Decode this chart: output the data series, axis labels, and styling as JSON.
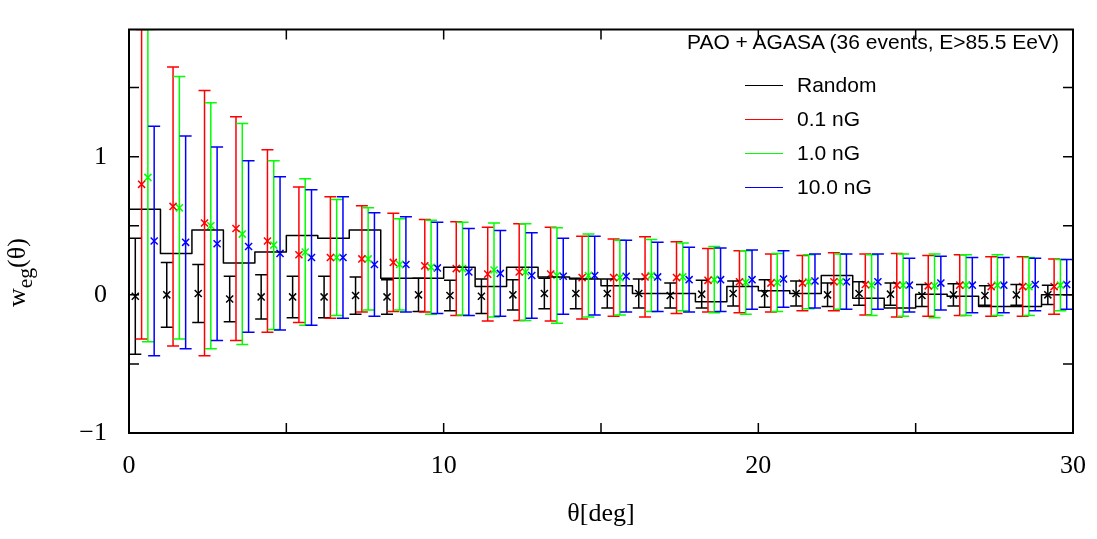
{
  "chart_data": {
    "type": "scatter",
    "legend_title": "PAO + AGASA (36 events, E>85.5 EeV)",
    "xlabel": "θ[deg]",
    "ylabel": "w$_{eg}$(θ)",
    "xlim": [
      0,
      30
    ],
    "ylim": [
      -1,
      1.92
    ],
    "xticks": [
      0,
      {
        "value": 5,
        "label": null
      },
      10,
      {
        "value": 15,
        "label": null
      },
      20,
      {
        "value": 25,
        "label": null
      },
      30
    ],
    "yticks": [
      -1,
      {
        "value": -0.5,
        "label": null
      },
      0,
      {
        "value": 0.5,
        "label": null
      },
      1,
      {
        "value": 1.5,
        "label": null
      }
    ],
    "legend": "top right",
    "marker": "cross",
    "series": [
      {
        "type": "histogram",
        "color": "#000000",
        "bins": [
          0,
          1,
          2,
          3,
          4,
          5,
          6,
          7,
          8,
          9,
          10,
          11,
          12,
          13,
          14,
          15,
          16,
          17,
          18,
          19,
          20,
          21,
          22,
          23,
          24,
          25,
          26,
          27,
          28,
          29,
          30
        ],
        "values": [
          0.62,
          0.3,
          0.47,
          0.23,
          0.31,
          0.43,
          0.41,
          0.47,
          0.12,
          0.12,
          0.2,
          0.06,
          0.2,
          0.13,
          0.115,
          0.065,
          0.01,
          0.01,
          -0.05,
          0.06,
          0.03,
          0.01,
          0.14,
          -0.025,
          -0.095,
          0.005,
          -0.01,
          -0.085,
          -0.085,
          0.0
        ]
      },
      {
        "name": "Random",
        "color": "#000000",
        "x": [
          0.2,
          1.2,
          2.2,
          3.2,
          4.2,
          5.2,
          6.2,
          7.2,
          8.2,
          9.2,
          10.2,
          11.2,
          12.2,
          13.2,
          14.2,
          15.2,
          16.2,
          17.2,
          18.2,
          19.2,
          20.2,
          21.2,
          22.2,
          23.2,
          24.2,
          25.2,
          26.2,
          27.2,
          28.2,
          29.2
        ],
        "values": [
          -0.01,
          0.0,
          0.01,
          -0.03,
          -0.015,
          -0.015,
          -0.015,
          -0.005,
          -0.015,
          0.0,
          -0.005,
          -0.01,
          0.0,
          0.01,
          0.01,
          0.01,
          0.01,
          -0.005,
          0.005,
          0.01,
          0.01,
          0.01,
          0.0,
          0.01,
          0.005,
          -0.005,
          0.0,
          -0.005,
          0.0,
          0.0
        ],
        "errors": [
          0.42,
          0.235,
          0.21,
          0.165,
          0.16,
          0.15,
          0.15,
          0.135,
          0.125,
          0.12,
          0.11,
          0.125,
          0.11,
          0.11,
          0.11,
          0.105,
          0.105,
          0.09,
          0.1,
          0.09,
          0.1,
          0.09,
          0.085,
          0.085,
          0.08,
          0.08,
          0.08,
          0.07,
          0.075,
          0.07
        ]
      },
      {
        "name": "0.1 nG",
        "color": "#ff0000",
        "x": [
          0.4,
          1.4,
          2.4,
          3.4,
          4.4,
          5.4,
          6.4,
          7.4,
          8.4,
          9.4,
          10.4,
          11.4,
          12.4,
          13.4,
          14.4,
          15.4,
          16.4,
          17.4,
          18.4,
          19.4,
          20.4,
          21.4,
          22.4,
          23.4,
          24.4,
          25.4,
          26.4,
          27.4,
          28.4,
          29.4
        ],
        "values": [
          0.8,
          0.64,
          0.52,
          0.48,
          0.39,
          0.29,
          0.27,
          0.26,
          0.235,
          0.21,
          0.19,
          0.15,
          0.165,
          0.15,
          0.125,
          0.125,
          0.13,
          0.125,
          0.105,
          0.095,
          0.085,
          0.085,
          0.095,
          0.075,
          0.07,
          0.065,
          0.07,
          0.06,
          0.06,
          0.06
        ],
        "errors": [
          [
            -0.32,
            1.92
          ],
          1.01,
          0.96,
          0.81,
          0.66,
          0.49,
          0.44,
          0.385,
          0.355,
          0.335,
          0.34,
          0.34,
          0.35,
          0.34,
          0.3,
          0.28,
          0.29,
          0.26,
          0.23,
          0.225,
          0.21,
          0.2,
          0.21,
          0.22,
          0.23,
          0.22,
          0.22,
          0.215,
          0.215,
          0.2
        ]
      },
      {
        "name": "1.0 nG",
        "color": "#00ff00",
        "x": [
          0.6,
          1.6,
          2.6,
          3.6,
          4.6,
          5.6,
          6.6,
          7.6,
          8.6,
          9.6,
          10.6,
          11.6,
          12.6,
          13.6,
          14.6,
          15.6,
          16.6,
          17.6,
          18.6,
          19.6,
          20.6,
          21.6,
          22.6,
          23.6,
          24.6,
          25.6,
          26.6,
          27.6,
          28.6,
          29.6
        ],
        "values": [
          0.85,
          0.63,
          0.5,
          0.44,
          0.36,
          0.31,
          0.27,
          0.26,
          0.22,
          0.2,
          0.19,
          0.18,
          0.165,
          0.14,
          0.14,
          0.125,
          0.14,
          0.13,
          0.11,
          0.09,
          0.09,
          0.095,
          0.095,
          0.07,
          0.07,
          0.065,
          0.07,
          0.07,
          0.06,
          0.07
        ],
        "errors": [
          [
            -0.34,
            1.92
          ],
          0.95,
          0.89,
          0.8,
          0.61,
          0.53,
          0.42,
          0.37,
          0.33,
          0.34,
          0.335,
          0.34,
          0.35,
          0.345,
          0.3,
          0.27,
          0.26,
          0.245,
          0.24,
          0.23,
          0.21,
          0.195,
          0.2,
          0.22,
          0.225,
          0.23,
          0.22,
          0.22,
          0.21,
          0.185
        ]
      },
      {
        "name": "10.0 nG",
        "color": "#0000ff",
        "x": [
          0.8,
          1.8,
          2.8,
          3.8,
          4.8,
          5.8,
          6.8,
          7.8,
          8.8,
          9.8,
          10.8,
          11.8,
          12.8,
          13.8,
          14.8,
          15.8,
          16.8,
          17.8,
          18.8,
          19.8,
          20.8,
          21.8,
          22.8,
          23.8,
          24.8,
          25.8,
          26.8,
          27.8,
          28.8,
          29.8
        ],
        "values": [
          0.39,
          0.38,
          0.37,
          0.35,
          0.3,
          0.27,
          0.27,
          0.22,
          0.22,
          0.195,
          0.165,
          0.155,
          0.14,
          0.135,
          0.14,
          0.135,
          0.13,
          0.11,
          0.11,
          0.11,
          0.115,
          0.1,
          0.095,
          0.095,
          0.07,
          0.085,
          0.07,
          0.07,
          0.075,
          0.075
        ],
        "errors": [
          0.83,
          0.77,
          0.7,
          0.62,
          0.555,
          0.49,
          0.44,
          0.375,
          0.345,
          0.33,
          0.315,
          0.31,
          0.31,
          0.275,
          0.285,
          0.26,
          0.25,
          0.235,
          0.23,
          0.215,
          0.205,
          0.195,
          0.2,
          0.2,
          0.195,
          0.195,
          0.2,
          0.2,
          0.19,
          0.18
        ]
      }
    ]
  }
}
